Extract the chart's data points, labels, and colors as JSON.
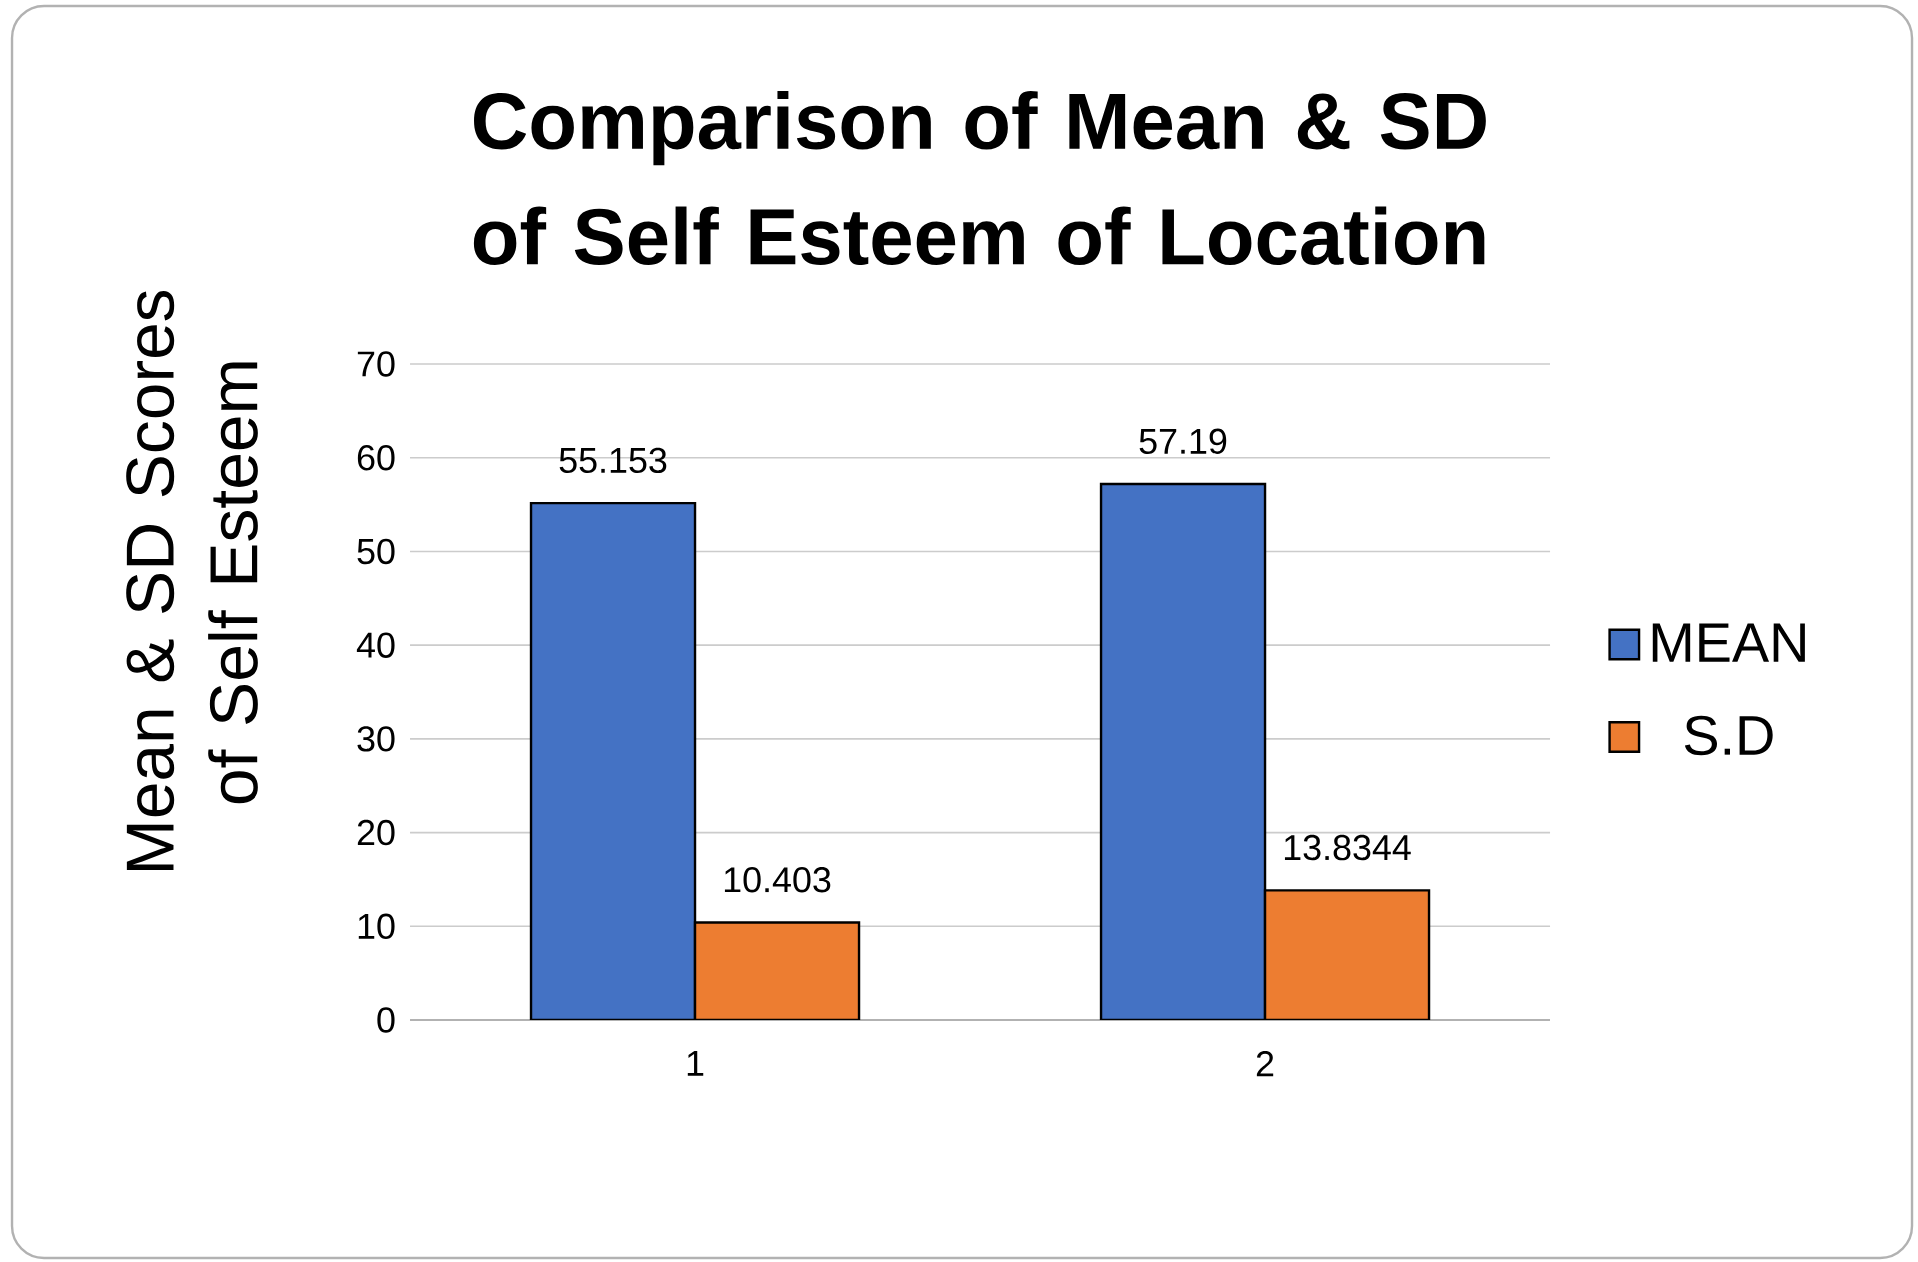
{
  "chart_data": {
    "type": "bar",
    "title": "Comparison of Mean & SD of Self Esteem of  Location",
    "ylabel": "Mean & SD Scores of Self Esteem",
    "categories": [
      "1",
      "2"
    ],
    "series": [
      {
        "name": "MEAN",
        "color": "#4472c4",
        "values": [
          55.153,
          57.19
        ]
      },
      {
        "name": "S.D",
        "color": "#ed7d31",
        "values": [
          10.403,
          13.8344
        ]
      }
    ],
    "ylim": [
      0,
      70
    ],
    "yticks": [
      0,
      10,
      20,
      30,
      40,
      50,
      60,
      70
    ],
    "grid": "y",
    "legend": "right",
    "data_labels": true
  }
}
